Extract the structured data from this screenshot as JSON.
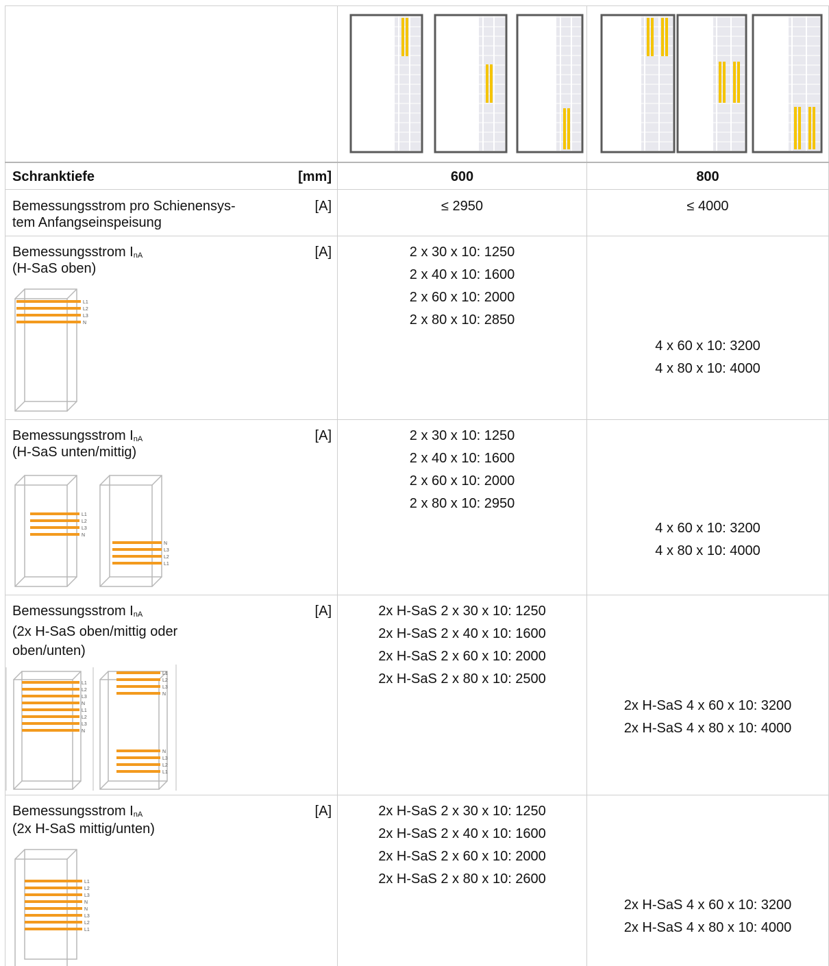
{
  "header": {
    "label": "Schranktiefe",
    "unit": "[mm]",
    "col600": "600",
    "col800": "800"
  },
  "rows": [
    {
      "label": "Bemessungsstrom pro Schienensys-\ntem Anfangseinspeisung",
      "unit": "[A]",
      "v600": [
        "≤ 2950"
      ],
      "v800": [
        "≤ 4000"
      ]
    },
    {
      "label_main": "Bemessungsstrom I",
      "label_sub": "nA",
      "label_2": "(H-SaS oben)",
      "unit": "[A]",
      "v600": [
        "2 x 30 x 10: 1250",
        "2 x 40 x 10: 1600",
        "2 x 60 x 10: 2000",
        "2 x 80 x 10: 2850"
      ],
      "v800": [
        "4 x 60 x 10: 3200",
        "4 x 80 x 10: 4000"
      ]
    },
    {
      "label_main": "Bemessungsstrom I",
      "label_sub": "nA",
      "label_2": "(H-SaS unten/mittig)",
      "unit": "[A]",
      "v600": [
        "2 x 30 x 10: 1250",
        "2 x 40 x 10: 1600",
        "2 x 60 x 10: 2000",
        "2 x 80 x 10: 2950"
      ],
      "v800": [
        "4 x 60 x 10: 3200",
        "4 x 80 x 10: 4000"
      ]
    },
    {
      "label_main": "Bemessungsstrom I",
      "label_sub": "nA",
      "label_2": "(2x H-SaS oben/mittig oder",
      "label_3": "oben/unten)",
      "unit": "[A]",
      "v600": [
        "2x H-SaS 2 x 30 x 10: 1250",
        "2x H-SaS 2 x 40 x 10: 1600",
        "2x H-SaS 2 x 60 x 10: 2000",
        "2x H-SaS 2 x 80 x 10: 2500"
      ],
      "v800": [
        "2x H-SaS 4 x 60 x 10: 3200",
        "2x H-SaS 4 x 80 x 10: 4000"
      ]
    },
    {
      "label_main": "Bemessungsstrom I",
      "label_sub": "nA",
      "label_2": "(2x H-SaS mittig/unten)",
      "unit": "[A]",
      "v600": [
        "2x H-SaS 2 x 30 x 10: 1250",
        "2x H-SaS 2 x 40 x 10: 1600",
        "2x H-SaS 2 x 60 x 10: 2000",
        "2x H-SaS 2 x 80 x 10: 2600"
      ],
      "v800": [
        "2x H-SaS 4 x 60 x 10: 3200",
        "2x H-SaS 4 x 80 x 10: 4000"
      ]
    }
  ],
  "phase_labels": {
    "top": [
      "L1",
      "L2",
      "L3",
      "N"
    ],
    "bottom": [
      "N",
      "L3",
      "L2",
      "L1"
    ],
    "double_top": [
      "L1",
      "L2",
      "L3",
      "N",
      "L1",
      "L2",
      "L3",
      "N"
    ],
    "double_mid": [
      "L1",
      "L2",
      "L3",
      "N",
      "N",
      "L3",
      "L2",
      "L1"
    ]
  },
  "colors": {
    "busbar": "#f39a1e",
    "busbar_yellow": "#f5c400",
    "frame": "#5a5a5a",
    "grid": "#cfcfcf"
  }
}
